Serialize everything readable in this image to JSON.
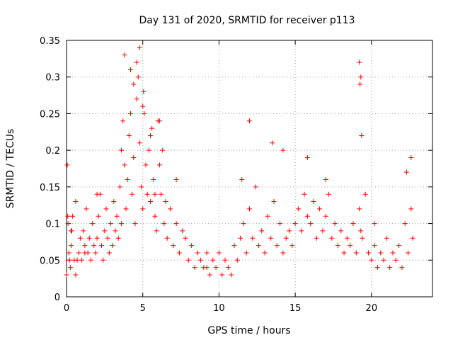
{
  "chart_data": {
    "type": "scatter",
    "title": "Day 131 of 2020, SRMTID for receiver p113",
    "xlabel": "GPS time / hours",
    "ylabel": "SRMTID / TECUs",
    "xlim": [
      0,
      24
    ],
    "ylim": [
      0,
      0.35
    ],
    "xticks": [
      0,
      5,
      10,
      15,
      20
    ],
    "xtick_labels": [
      "0",
      "5",
      "10",
      "15",
      "20"
    ],
    "yticks": [
      0,
      0.05,
      0.1,
      0.15,
      0.2,
      0.25,
      0.3,
      0.35
    ],
    "ytick_labels": [
      "0",
      "0.05",
      "0.1",
      "0.15",
      "0.2",
      "0.25",
      "0.3",
      "0.35"
    ],
    "grid": true,
    "marker": "+",
    "series": [
      {
        "name": "SRMTID",
        "color": "#ff0000",
        "x": [
          0.0,
          0.05,
          0.1,
          0.15,
          0.2,
          0.25,
          0.3,
          0.35,
          0.4,
          0.5,
          0.6,
          0.7,
          0.8,
          0.9,
          1.0,
          1.1,
          1.2,
          1.3,
          1.4,
          1.5,
          1.6,
          1.7,
          1.8,
          1.9,
          2.0,
          2.1,
          2.2,
          2.3,
          2.4,
          2.5,
          2.6,
          2.7,
          2.8,
          2.9,
          3.0,
          3.1,
          3.2,
          3.3,
          3.4,
          3.5,
          3.6,
          3.7,
          3.8,
          3.9,
          4.0,
          4.1,
          4.2,
          4.3,
          4.4,
          4.5,
          4.6,
          4.7,
          4.8,
          4.9,
          5.0,
          5.1,
          5.2,
          5.3,
          5.4,
          5.5,
          5.6,
          5.7,
          5.8,
          5.9,
          6.0,
          6.1,
          6.2,
          6.3,
          6.4,
          6.5,
          6.6,
          6.8,
          7.0,
          7.2,
          7.4,
          7.6,
          7.8,
          8.0,
          8.2,
          8.4,
          8.6,
          8.8,
          9.0,
          9.2,
          9.4,
          9.6,
          9.8,
          10.0,
          10.2,
          10.4,
          10.6,
          10.8,
          11.0,
          11.2,
          11.4,
          11.6,
          11.8,
          12.0,
          12.2,
          12.4,
          12.6,
          12.8,
          13.0,
          13.2,
          13.4,
          13.6,
          13.8,
          14.0,
          14.2,
          14.4,
          14.6,
          14.8,
          15.0,
          15.2,
          15.4,
          15.6,
          15.8,
          16.0,
          16.2,
          16.4,
          16.6,
          16.8,
          17.0,
          17.2,
          17.4,
          17.6,
          17.8,
          18.0,
          18.2,
          18.4,
          18.6,
          18.8,
          19.0,
          19.2,
          19.3,
          19.4,
          19.6,
          19.8,
          20.0,
          20.2,
          20.4,
          20.6,
          20.8,
          21.0,
          21.2,
          21.4,
          21.6,
          21.8,
          22.0,
          22.2,
          22.4,
          22.6,
          22.7,
          0.08,
          0.3,
          0.6,
          1.2,
          2.0,
          3.6,
          3.8,
          4.2,
          4.4,
          4.6,
          4.8,
          5.0,
          5.05,
          5.5,
          5.8,
          6.1,
          7.2,
          9.2,
          11.5,
          12.0,
          13.5,
          14.2,
          15.8,
          17.0,
          19.2,
          19.25,
          19.3,
          19.35,
          20.2,
          22.3,
          22.6
        ],
        "y": [
          0.03,
          0.18,
          0.1,
          0.06,
          0.05,
          0.04,
          0.07,
          0.09,
          0.11,
          0.05,
          0.03,
          0.05,
          0.06,
          0.08,
          0.05,
          0.09,
          0.07,
          0.12,
          0.06,
          0.08,
          0.05,
          0.1,
          0.07,
          0.06,
          0.08,
          0.11,
          0.14,
          0.07,
          0.05,
          0.09,
          0.12,
          0.08,
          0.06,
          0.1,
          0.07,
          0.13,
          0.09,
          0.11,
          0.08,
          0.15,
          0.2,
          0.24,
          0.18,
          0.12,
          0.16,
          0.22,
          0.25,
          0.14,
          0.19,
          0.1,
          0.27,
          0.3,
          0.21,
          0.15,
          0.12,
          0.25,
          0.18,
          0.14,
          0.2,
          0.13,
          0.23,
          0.16,
          0.11,
          0.09,
          0.24,
          0.18,
          0.14,
          0.2,
          0.1,
          0.13,
          0.08,
          0.12,
          0.07,
          0.1,
          0.06,
          0.09,
          0.08,
          0.05,
          0.07,
          0.04,
          0.06,
          0.05,
          0.04,
          0.06,
          0.03,
          0.05,
          0.04,
          0.06,
          0.03,
          0.05,
          0.04,
          0.03,
          0.07,
          0.05,
          0.08,
          0.1,
          0.06,
          0.12,
          0.08,
          0.15,
          0.07,
          0.09,
          0.06,
          0.11,
          0.08,
          0.13,
          0.07,
          0.1,
          0.06,
          0.08,
          0.09,
          0.07,
          0.1,
          0.12,
          0.09,
          0.14,
          0.11,
          0.1,
          0.13,
          0.08,
          0.12,
          0.09,
          0.11,
          0.14,
          0.08,
          0.1,
          0.07,
          0.09,
          0.06,
          0.08,
          0.07,
          0.1,
          0.06,
          0.12,
          0.09,
          0.08,
          0.14,
          0.06,
          0.05,
          0.07,
          0.04,
          0.06,
          0.05,
          0.08,
          0.04,
          0.06,
          0.05,
          0.07,
          0.04,
          0.1,
          0.06,
          0.12,
          0.08,
          0.11,
          0.09,
          0.13,
          0.06,
          0.14,
          0.1,
          0.33,
          0.31,
          0.29,
          0.32,
          0.34,
          0.26,
          0.28,
          0.22,
          0.14,
          0.24,
          0.16,
          0.04,
          0.16,
          0.24,
          0.21,
          0.2,
          0.19,
          0.16,
          0.32,
          0.29,
          0.3,
          0.22,
          0.1,
          0.17,
          0.19
        ]
      }
    ]
  }
}
